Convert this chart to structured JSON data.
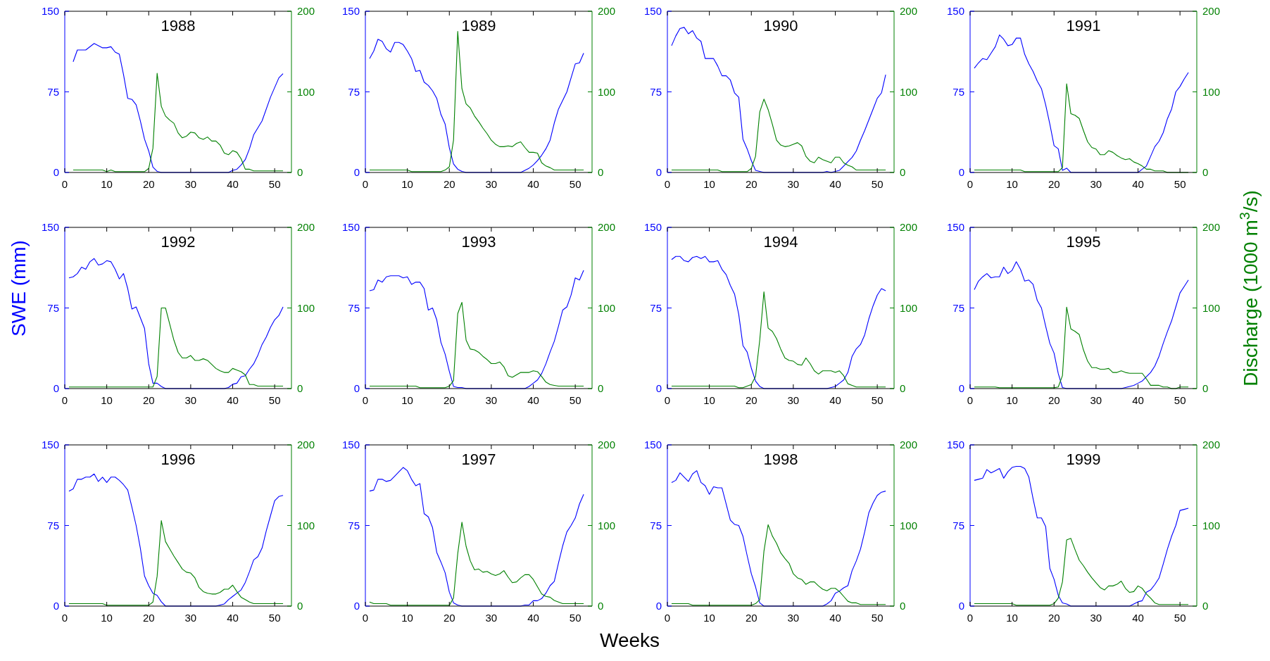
{
  "chart_data": [
    {
      "type": "line",
      "title": "1988",
      "xlim": [
        0,
        54
      ],
      "xticks": [
        0,
        10,
        20,
        30,
        40,
        50
      ],
      "ylim": [
        0,
        150
      ],
      "yticks": [
        0,
        75,
        150
      ],
      "y2lim": [
        0,
        200
      ],
      "y2ticks": [
        0,
        100,
        200
      ],
      "series": [
        {
          "color": "#0000ff",
          "x": [
            2,
            3,
            5,
            7,
            9,
            10,
            11,
            12,
            13,
            14,
            15,
            16,
            17,
            18,
            19,
            20,
            21,
            22,
            23,
            39,
            40,
            41,
            42,
            43,
            44,
            45,
            47,
            49,
            51,
            52
          ],
          "values": [
            103,
            114,
            114,
            120,
            116,
            116,
            117,
            112,
            110,
            91,
            69,
            68,
            63,
            48,
            31,
            20,
            5,
            1,
            0,
            0,
            2,
            3,
            7,
            12,
            22,
            35,
            48,
            70,
            88,
            92
          ]
        },
        {
          "color": "#008000",
          "axis": "y2",
          "x": [
            2,
            9,
            10,
            11,
            12,
            19,
            20,
            21,
            22,
            23,
            24,
            25,
            26,
            27,
            28,
            29,
            30,
            31,
            32,
            33,
            34,
            35,
            36,
            37,
            38,
            39,
            40,
            41,
            42,
            43,
            44,
            45,
            52
          ],
          "values": [
            3,
            3,
            1,
            3,
            1,
            1,
            5,
            30,
            123,
            82,
            70,
            65,
            61,
            49,
            43,
            45,
            50,
            49,
            43,
            41,
            44,
            39,
            39,
            34,
            24,
            22,
            27,
            25,
            17,
            4,
            4,
            2,
            2
          ]
        }
      ]
    },
    {
      "type": "line",
      "title": "1989",
      "xlim": [
        0,
        54
      ],
      "xticks": [
        0,
        10,
        20,
        30,
        40,
        50
      ],
      "ylim": [
        0,
        150
      ],
      "yticks": [
        0,
        75,
        150
      ],
      "y2lim": [
        0,
        200
      ],
      "y2ticks": [
        0,
        100,
        200
      ],
      "series": [
        {
          "color": "#0000ff",
          "x": [
            1,
            2,
            3,
            4,
            5,
            6,
            7,
            8,
            9,
            10,
            11,
            12,
            13,
            14,
            15,
            16,
            17,
            18,
            19,
            20,
            21,
            22,
            23,
            24,
            37,
            38,
            39,
            40,
            41,
            42,
            43,
            44,
            45,
            46,
            47,
            48,
            49,
            50,
            51,
            52
          ],
          "values": [
            106,
            113,
            124,
            122,
            115,
            112,
            121,
            121,
            119,
            113,
            106,
            94,
            95,
            84,
            81,
            76,
            69,
            54,
            45,
            23,
            8,
            3,
            1,
            0,
            0,
            2,
            4,
            7,
            11,
            16,
            22,
            30,
            46,
            59,
            67,
            75,
            88,
            101,
            102,
            111
          ]
        },
        {
          "color": "#008000",
          "axis": "y2",
          "x": [
            1,
            10,
            11,
            18,
            19,
            20,
            21,
            22,
            23,
            24,
            25,
            26,
            27,
            28,
            29,
            30,
            31,
            32,
            33,
            34,
            35,
            36,
            37,
            38,
            39,
            40,
            41,
            42,
            43,
            44,
            45,
            52
          ],
          "values": [
            3,
            3,
            1,
            1,
            3,
            7,
            40,
            175,
            104,
            85,
            80,
            70,
            63,
            55,
            48,
            40,
            35,
            32,
            32,
            33,
            32,
            36,
            38,
            31,
            25,
            25,
            24,
            12,
            8,
            6,
            3,
            3
          ]
        }
      ]
    },
    {
      "type": "line",
      "title": "1990",
      "xlim": [
        0,
        54
      ],
      "xticks": [
        0,
        10,
        20,
        30,
        40,
        50
      ],
      "ylim": [
        0,
        150
      ],
      "yticks": [
        0,
        75,
        150
      ],
      "y2lim": [
        0,
        200
      ],
      "y2ticks": [
        0,
        100,
        200
      ],
      "series": [
        {
          "color": "#0000ff",
          "x": [
            1,
            2,
            3,
            4,
            5,
            6,
            7,
            8,
            9,
            10,
            11,
            12,
            13,
            14,
            15,
            16,
            17,
            18,
            19,
            20,
            21,
            22,
            23,
            37,
            38,
            39,
            40,
            41,
            42,
            43,
            44,
            45,
            46,
            47,
            48,
            49,
            50,
            51,
            52
          ],
          "values": [
            118,
            127,
            134,
            135,
            129,
            132,
            125,
            122,
            106,
            106,
            106,
            99,
            90,
            90,
            86,
            74,
            70,
            31,
            22,
            11,
            2,
            1,
            0,
            0,
            1,
            0,
            1,
            2,
            6,
            10,
            14,
            20,
            30,
            39,
            49,
            59,
            69,
            74,
            91
          ]
        },
        {
          "color": "#008000",
          "axis": "y2",
          "x": [
            1,
            12,
            13,
            19,
            20,
            21,
            22,
            23,
            24,
            25,
            26,
            27,
            28,
            29,
            30,
            31,
            32,
            33,
            34,
            35,
            36,
            37,
            38,
            39,
            40,
            41,
            42,
            43,
            44,
            45,
            52
          ],
          "values": [
            3,
            3,
            1,
            1,
            5,
            20,
            75,
            91,
            78,
            60,
            40,
            34,
            32,
            33,
            35,
            37,
            33,
            20,
            14,
            12,
            19,
            16,
            14,
            12,
            19,
            19,
            12,
            9,
            7,
            3,
            3
          ]
        }
      ]
    },
    {
      "type": "line",
      "title": "1991",
      "xlim": [
        0,
        54
      ],
      "xticks": [
        0,
        10,
        20,
        30,
        40,
        50
      ],
      "ylim": [
        0,
        150
      ],
      "yticks": [
        0,
        75,
        150
      ],
      "y2lim": [
        0,
        200
      ],
      "y2ticks": [
        0,
        100,
        200
      ],
      "series": [
        {
          "color": "#0000ff",
          "x": [
            1,
            2,
            3,
            4,
            5,
            6,
            7,
            8,
            9,
            10,
            11,
            12,
            13,
            14,
            15,
            16,
            17,
            18,
            19,
            20,
            21,
            22,
            23,
            24,
            40,
            41,
            42,
            43,
            44,
            45,
            46,
            47,
            48,
            49,
            50,
            51,
            52
          ],
          "values": [
            97,
            102,
            106,
            105,
            111,
            117,
            128,
            124,
            118,
            119,
            125,
            125,
            110,
            101,
            94,
            85,
            78,
            63,
            45,
            25,
            22,
            2,
            4,
            0,
            0,
            3,
            6,
            15,
            24,
            29,
            37,
            50,
            59,
            75,
            80,
            87,
            93
          ]
        },
        {
          "color": "#008000",
          "axis": "y2",
          "x": [
            1,
            12,
            13,
            21,
            22,
            23,
            24,
            25,
            26,
            27,
            28,
            29,
            30,
            31,
            32,
            33,
            34,
            35,
            36,
            37,
            38,
            39,
            40,
            41,
            42,
            43,
            44,
            46,
            47,
            52
          ],
          "values": [
            3,
            3,
            1,
            1,
            6,
            110,
            73,
            71,
            67,
            52,
            38,
            31,
            29,
            22,
            22,
            27,
            25,
            21,
            18,
            16,
            17,
            13,
            11,
            8,
            4,
            4,
            2,
            2,
            0,
            0
          ]
        }
      ]
    },
    {
      "type": "line",
      "title": "1992",
      "ylabel": "SWE (mm)",
      "xlim": [
        0,
        54
      ],
      "xticks": [
        0,
        10,
        20,
        30,
        40,
        50
      ],
      "ylim": [
        0,
        150
      ],
      "yticks": [
        0,
        75,
        150
      ],
      "y2lim": [
        0,
        200
      ],
      "y2ticks": [
        0,
        100,
        200
      ],
      "series": [
        {
          "color": "#0000ff",
          "x": [
            1,
            2,
            3,
            4,
            5,
            6,
            7,
            8,
            9,
            10,
            11,
            12,
            13,
            14,
            15,
            16,
            17,
            18,
            19,
            20,
            21,
            22,
            23,
            24,
            38,
            39,
            40,
            41,
            42,
            43,
            44,
            45,
            46,
            47,
            48,
            49,
            50,
            51,
            52
          ],
          "values": [
            103,
            104,
            107,
            113,
            111,
            118,
            121,
            115,
            116,
            119,
            118,
            111,
            102,
            107,
            93,
            74,
            76,
            66,
            56,
            23,
            5,
            5,
            2,
            0,
            0,
            1,
            4,
            5,
            11,
            12,
            18,
            23,
            31,
            41,
            48,
            57,
            64,
            68,
            76
          ]
        },
        {
          "color": "#008000",
          "axis": "y2",
          "x": [
            1,
            21,
            22,
            23,
            24,
            25,
            26,
            27,
            28,
            29,
            30,
            31,
            32,
            33,
            34,
            35,
            36,
            37,
            38,
            39,
            40,
            41,
            42,
            43,
            44,
            45,
            46,
            52
          ],
          "values": [
            2,
            2,
            15,
            100,
            100,
            80,
            60,
            45,
            38,
            38,
            41,
            35,
            35,
            37,
            35,
            30,
            25,
            22,
            20,
            20,
            25,
            23,
            21,
            17,
            5,
            5,
            3,
            3
          ]
        }
      ]
    },
    {
      "type": "line",
      "title": "1993",
      "xlim": [
        0,
        54
      ],
      "xticks": [
        0,
        10,
        20,
        30,
        40,
        50
      ],
      "ylim": [
        0,
        150
      ],
      "yticks": [
        0,
        75,
        150
      ],
      "y2lim": [
        0,
        200
      ],
      "y2ticks": [
        0,
        100,
        200
      ],
      "series": [
        {
          "color": "#0000ff",
          "x": [
            1,
            2,
            3,
            4,
            5,
            6,
            7,
            8,
            9,
            10,
            11,
            12,
            13,
            14,
            15,
            16,
            17,
            18,
            19,
            20,
            21,
            22,
            23,
            24,
            38,
            39,
            40,
            41,
            42,
            43,
            44,
            45,
            46,
            47,
            48,
            49,
            50,
            51,
            52
          ],
          "values": [
            91,
            92,
            101,
            99,
            104,
            105,
            105,
            105,
            103,
            104,
            97,
            99,
            99,
            93,
            73,
            75,
            64,
            43,
            32,
            16,
            2,
            1,
            1,
            0,
            0,
            2,
            5,
            8,
            14,
            23,
            34,
            44,
            58,
            73,
            76,
            87,
            103,
            101,
            110
          ]
        },
        {
          "color": "#008000",
          "axis": "y2",
          "x": [
            1,
            12,
            13,
            19,
            20,
            21,
            22,
            23,
            24,
            25,
            26,
            27,
            28,
            29,
            30,
            31,
            32,
            33,
            34,
            35,
            36,
            37,
            38,
            39,
            40,
            41,
            42,
            43,
            44,
            45,
            46,
            52
          ],
          "values": [
            3,
            3,
            1,
            1,
            3,
            10,
            93,
            107,
            60,
            49,
            48,
            45,
            40,
            36,
            31,
            31,
            33,
            27,
            16,
            14,
            17,
            20,
            20,
            20,
            22,
            21,
            15,
            8,
            5,
            4,
            3,
            3
          ]
        }
      ]
    },
    {
      "type": "line",
      "title": "1994",
      "xlim": [
        0,
        54
      ],
      "xticks": [
        0,
        10,
        20,
        30,
        40,
        50
      ],
      "ylim": [
        0,
        150
      ],
      "yticks": [
        0,
        75,
        150
      ],
      "y2lim": [
        0,
        200
      ],
      "y2ticks": [
        0,
        100,
        200
      ],
      "series": [
        {
          "color": "#0000ff",
          "x": [
            1,
            2,
            3,
            4,
            5,
            6,
            7,
            8,
            9,
            10,
            11,
            12,
            13,
            14,
            15,
            16,
            17,
            18,
            19,
            20,
            21,
            22,
            23,
            38,
            39,
            40,
            41,
            42,
            43,
            44,
            45,
            46,
            47,
            48,
            49,
            50,
            51,
            52
          ],
          "values": [
            120,
            123,
            123,
            119,
            118,
            122,
            123,
            121,
            123,
            118,
            118,
            119,
            111,
            106,
            96,
            88,
            69,
            40,
            34,
            19,
            7,
            2,
            0,
            0,
            1,
            2,
            5,
            8,
            15,
            30,
            37,
            41,
            50,
            65,
            77,
            87,
            93,
            91
          ]
        },
        {
          "color": "#008000",
          "axis": "y2",
          "x": [
            1,
            16,
            17,
            18,
            19,
            20,
            21,
            22,
            23,
            24,
            25,
            26,
            27,
            28,
            29,
            30,
            31,
            32,
            33,
            34,
            35,
            36,
            37,
            38,
            39,
            40,
            41,
            42,
            43,
            44,
            45,
            52
          ],
          "values": [
            3,
            3,
            1,
            1,
            3,
            5,
            15,
            60,
            120,
            75,
            71,
            62,
            49,
            38,
            35,
            34,
            30,
            29,
            38,
            31,
            22,
            18,
            22,
            22,
            22,
            20,
            22,
            16,
            6,
            4,
            2,
            2
          ]
        }
      ]
    },
    {
      "type": "line",
      "title": "1995",
      "y2label": "Discharge (1000 m$^{3}$/s)",
      "xlim": [
        0,
        54
      ],
      "xticks": [
        0,
        10,
        20,
        30,
        40,
        50
      ],
      "ylim": [
        0,
        150
      ],
      "yticks": [
        0,
        75,
        150
      ],
      "y2lim": [
        0,
        200
      ],
      "y2ticks": [
        0,
        100,
        200
      ],
      "series": [
        {
          "color": "#0000ff",
          "x": [
            1,
            2,
            3,
            4,
            5,
            6,
            7,
            8,
            9,
            10,
            11,
            12,
            13,
            14,
            15,
            16,
            17,
            18,
            19,
            20,
            21,
            22,
            23,
            36,
            37,
            38,
            39,
            40,
            41,
            42,
            43,
            44,
            45,
            46,
            47,
            48,
            49,
            50,
            51,
            52
          ],
          "values": [
            92,
            100,
            104,
            107,
            103,
            104,
            104,
            113,
            107,
            110,
            118,
            111,
            100,
            101,
            97,
            82,
            75,
            58,
            42,
            33,
            14,
            1,
            0,
            0,
            1,
            2,
            3,
            5,
            7,
            11,
            15,
            21,
            30,
            42,
            53,
            63,
            76,
            89,
            95,
            101
          ]
        },
        {
          "color": "#008000",
          "axis": "y2",
          "x": [
            1,
            6,
            7,
            20,
            21,
            22,
            23,
            24,
            25,
            26,
            27,
            28,
            29,
            30,
            31,
            32,
            33,
            34,
            35,
            36,
            37,
            38,
            39,
            40,
            41,
            42,
            43,
            44,
            45,
            46,
            47,
            48,
            49,
            50,
            52
          ],
          "values": [
            2,
            2,
            1,
            1,
            2,
            16,
            101,
            74,
            71,
            67,
            48,
            34,
            26,
            26,
            24,
            24,
            25,
            20,
            20,
            22,
            20,
            19,
            19,
            19,
            19,
            12,
            4,
            4,
            4,
            2,
            2,
            0,
            0,
            2,
            2
          ]
        }
      ]
    },
    {
      "type": "line",
      "title": "1996",
      "xlim": [
        0,
        54
      ],
      "xticks": [
        0,
        10,
        20,
        30,
        40,
        50
      ],
      "ylim": [
        0,
        150
      ],
      "yticks": [
        0,
        75,
        150
      ],
      "y2lim": [
        0,
        200
      ],
      "y2ticks": [
        0,
        100,
        200
      ],
      "series": [
        {
          "color": "#0000ff",
          "x": [
            1,
            2,
            3,
            4,
            5,
            6,
            7,
            8,
            9,
            10,
            11,
            12,
            13,
            14,
            15,
            16,
            17,
            18,
            19,
            20,
            21,
            22,
            23,
            24,
            36,
            37,
            38,
            39,
            40,
            41,
            42,
            43,
            44,
            45,
            46,
            47,
            48,
            49,
            50,
            51,
            52
          ],
          "values": [
            107,
            109,
            118,
            118,
            120,
            120,
            123,
            116,
            120,
            115,
            120,
            120,
            117,
            113,
            108,
            92,
            75,
            54,
            28,
            19,
            12,
            10,
            4,
            0,
            0,
            1,
            2,
            6,
            9,
            12,
            15,
            22,
            32,
            43,
            46,
            54,
            70,
            84,
            98,
            102,
            103
          ]
        },
        {
          "color": "#008000",
          "axis": "y2",
          "x": [
            1,
            9,
            10,
            20,
            21,
            22,
            23,
            24,
            25,
            26,
            27,
            28,
            29,
            30,
            31,
            32,
            33,
            34,
            35,
            36,
            37,
            38,
            39,
            40,
            41,
            42,
            43,
            44,
            45,
            52
          ],
          "values": [
            3,
            3,
            1,
            1,
            5,
            37,
            106,
            80,
            71,
            62,
            54,
            46,
            42,
            41,
            35,
            23,
            18,
            16,
            15,
            15,
            17,
            21,
            21,
            26,
            18,
            11,
            8,
            5,
            3,
            3
          ]
        }
      ]
    },
    {
      "type": "line",
      "title": "1997",
      "xlabel": "Weeks",
      "xlim": [
        0,
        54
      ],
      "xticks": [
        0,
        10,
        20,
        30,
        40,
        50
      ],
      "ylim": [
        0,
        150
      ],
      "yticks": [
        0,
        75,
        150
      ],
      "y2lim": [
        0,
        200
      ],
      "y2ticks": [
        0,
        100,
        200
      ],
      "series": [
        {
          "color": "#0000ff",
          "x": [
            1,
            2,
            3,
            4,
            5,
            6,
            7,
            8,
            9,
            10,
            11,
            12,
            13,
            14,
            15,
            16,
            17,
            18,
            19,
            20,
            21,
            22,
            23,
            37,
            38,
            39,
            40,
            41,
            42,
            43,
            44,
            45,
            46,
            47,
            48,
            49,
            50,
            51,
            52
          ],
          "values": [
            107,
            108,
            118,
            118,
            116,
            117,
            121,
            125,
            129,
            126,
            118,
            112,
            114,
            86,
            83,
            73,
            50,
            41,
            31,
            13,
            3,
            1,
            0,
            0,
            1,
            1,
            5,
            5,
            7,
            12,
            19,
            23,
            40,
            56,
            69,
            75,
            82,
            95,
            104
          ]
        },
        {
          "color": "#008000",
          "axis": "y2",
          "x": [
            1,
            2,
            5,
            6,
            20,
            21,
            22,
            23,
            24,
            25,
            26,
            27,
            28,
            29,
            30,
            31,
            32,
            33,
            34,
            35,
            36,
            37,
            38,
            39,
            40,
            41,
            42,
            43,
            44,
            45,
            46,
            47,
            52
          ],
          "values": [
            5,
            3,
            3,
            1,
            1,
            10,
            65,
            104,
            74,
            56,
            45,
            46,
            42,
            43,
            40,
            38,
            40,
            44,
            36,
            29,
            30,
            35,
            39,
            39,
            33,
            24,
            15,
            12,
            11,
            7,
            5,
            3,
            3
          ]
        }
      ]
    },
    {
      "type": "line",
      "title": "1998",
      "xlim": [
        0,
        54
      ],
      "xticks": [
        0,
        10,
        20,
        30,
        40,
        50
      ],
      "ylim": [
        0,
        150
      ],
      "yticks": [
        0,
        75,
        150
      ],
      "y2lim": [
        0,
        200
      ],
      "y2ticks": [
        0,
        100,
        200
      ],
      "series": [
        {
          "color": "#0000ff",
          "x": [
            1,
            2,
            3,
            4,
            5,
            6,
            7,
            8,
            9,
            10,
            11,
            12,
            13,
            14,
            15,
            16,
            17,
            18,
            19,
            20,
            21,
            22,
            23,
            37,
            38,
            39,
            40,
            41,
            42,
            43,
            44,
            45,
            46,
            47,
            48,
            49,
            50,
            51,
            52
          ],
          "values": [
            115,
            117,
            124,
            120,
            116,
            123,
            126,
            115,
            112,
            104,
            111,
            110,
            110,
            95,
            80,
            76,
            75,
            65,
            47,
            30,
            18,
            3,
            0,
            0,
            2,
            5,
            12,
            14,
            17,
            19,
            33,
            42,
            53,
            69,
            87,
            96,
            103,
            106,
            107
          ]
        },
        {
          "color": "#008000",
          "axis": "y2",
          "x": [
            1,
            5,
            6,
            20,
            21,
            22,
            23,
            24,
            25,
            26,
            27,
            28,
            29,
            30,
            31,
            32,
            33,
            34,
            35,
            36,
            37,
            38,
            39,
            40,
            41,
            42,
            43,
            44,
            45,
            46,
            52
          ],
          "values": [
            3,
            3,
            1,
            1,
            3,
            8,
            68,
            101,
            87,
            78,
            66,
            59,
            53,
            40,
            35,
            33,
            27,
            30,
            30,
            25,
            21,
            19,
            22,
            22,
            18,
            12,
            6,
            4,
            4,
            2,
            2
          ]
        }
      ]
    },
    {
      "type": "line",
      "title": "1999",
      "xlim": [
        0,
        54
      ],
      "xticks": [
        0,
        10,
        20,
        30,
        40,
        50
      ],
      "ylim": [
        0,
        150
      ],
      "yticks": [
        0,
        75,
        150
      ],
      "y2lim": [
        0,
        200
      ],
      "y2ticks": [
        0,
        100,
        200
      ],
      "series": [
        {
          "color": "#0000ff",
          "x": [
            1,
            2,
            3,
            4,
            5,
            6,
            7,
            8,
            9,
            10,
            11,
            12,
            13,
            14,
            15,
            16,
            17,
            18,
            19,
            20,
            21,
            22,
            23,
            24,
            38,
            39,
            40,
            41,
            42,
            43,
            44,
            45,
            46,
            47,
            48,
            49,
            50,
            51,
            52
          ],
          "values": [
            117,
            118,
            119,
            127,
            124,
            126,
            128,
            119,
            125,
            129,
            130,
            130,
            128,
            120,
            100,
            82,
            82,
            74,
            35,
            25,
            10,
            3,
            2,
            0,
            0,
            2,
            4,
            5,
            13,
            15,
            20,
            26,
            39,
            53,
            65,
            75,
            89,
            90,
            91
          ]
        },
        {
          "color": "#008000",
          "axis": "y2",
          "x": [
            1,
            10,
            11,
            19,
            20,
            21,
            22,
            23,
            24,
            25,
            26,
            27,
            28,
            29,
            30,
            31,
            32,
            33,
            34,
            35,
            36,
            37,
            38,
            39,
            40,
            41,
            42,
            43,
            44,
            45,
            52
          ],
          "values": [
            3,
            3,
            1,
            1,
            3,
            10,
            30,
            82,
            84,
            70,
            57,
            50,
            42,
            35,
            29,
            23,
            20,
            25,
            25,
            27,
            31,
            22,
            17,
            18,
            25,
            22,
            15,
            10,
            4,
            2,
            2
          ]
        }
      ]
    }
  ]
}
